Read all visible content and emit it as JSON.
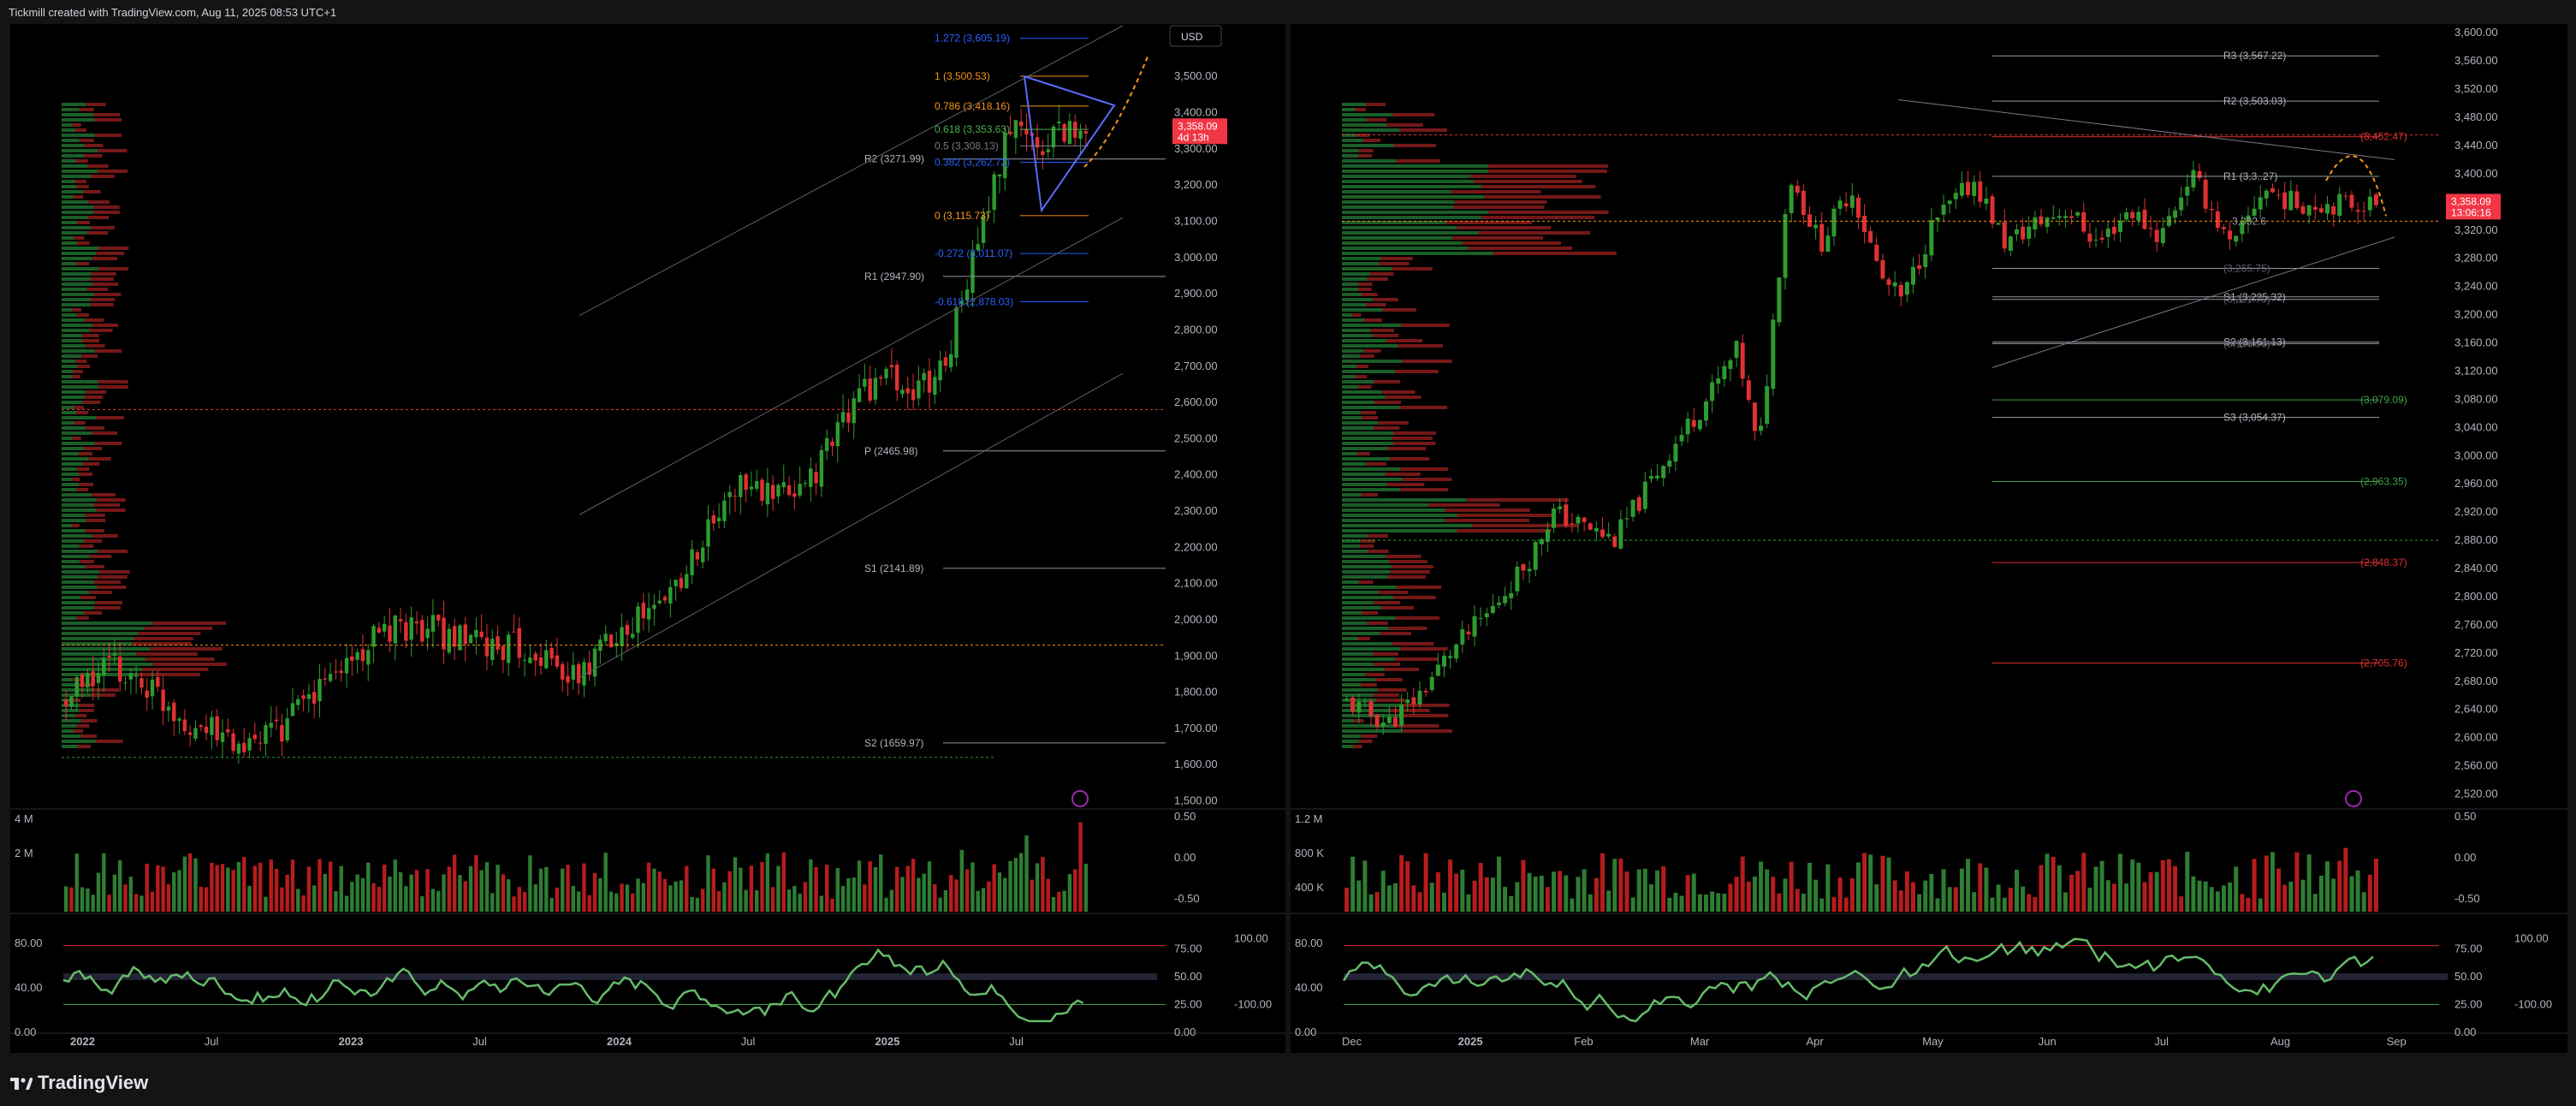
{
  "header": {
    "title": "Tickmill created with TradingView.com, Aug 11, 2025 08:53 UTC+1"
  },
  "footer": {
    "brand": "TradingView"
  },
  "colors": {
    "up": "#26a69a",
    "upGreen": "#2e9b2e",
    "down": "#e03131",
    "bg": "#000000",
    "frame": "#141414",
    "grid": "#1e1e1e",
    "fib_orange": "#f7931a",
    "fib_blue": "#2962ff",
    "pivot": "#d1d4dc",
    "price_tag": "#f23645"
  },
  "chart_data": [
    {
      "type": "candlestick",
      "panel": "left",
      "timeframe": "weekly",
      "currency_button": "USD",
      "y_ticks": [
        "3,600.00",
        "3,500.00",
        "3,400.00",
        "3,300.00",
        "3,200.00",
        "3,100.00",
        "3,000.00",
        "2,900.00",
        "2,800.00",
        "2,700.00",
        "2,600.00",
        "2,500.00",
        "2,400.00",
        "2,300.00",
        "2,200.00",
        "2,100.00",
        "2,000.00",
        "1,900.00",
        "1,800.00",
        "1,700.00",
        "1,600.00",
        "1,500.00"
      ],
      "ylim": [
        1480,
        3640
      ],
      "x_ticks": [
        "2022",
        "Jul",
        "2023",
        "Jul",
        "2024",
        "Jul",
        "2025",
        "Jul"
      ],
      "x_ticks_bold": [
        true,
        false,
        true,
        false,
        true,
        false,
        true,
        false
      ],
      "last_price": "3,358.09",
      "countdown": "4d 13h",
      "pivots": [
        {
          "label": "R2 (3271.99)",
          "value": 3271.99
        },
        {
          "label": "R1 (2947.90)",
          "value": 2947.9
        },
        {
          "label": "P (2465.98)",
          "value": 2465.98
        },
        {
          "label": "S1 (2141.89)",
          "value": 2141.89
        },
        {
          "label": "S2 (1659.97)",
          "value": 1659.97
        }
      ],
      "fib_levels": [
        {
          "label": "1.272 (3,605.19)",
          "value": 3605.19,
          "color": "blue"
        },
        {
          "label": "1 (3,500.53)",
          "value": 3500.53,
          "color": "orange"
        },
        {
          "label": "0.786 (3,418.16)",
          "value": 3418.16,
          "color": "orange"
        },
        {
          "label": "0.618 (3,353.63)",
          "value": 3353.63,
          "color": "green"
        },
        {
          "label": "0.5 (3,308.13)",
          "value": 3308.13,
          "color": "gray"
        },
        {
          "label": "0.382 (3,262.72)",
          "value": 3262.72,
          "color": "blue"
        },
        {
          "label": "0 (3,115.73)",
          "value": 3115.73,
          "color": "orange"
        },
        {
          "label": "-0.272 (3,011.07)",
          "value": 3011.07,
          "color": "blue"
        },
        {
          "label": "-0.618 (2,878.03)",
          "value": 2878.03,
          "color": "blue"
        }
      ],
      "volume_axis": [
        "4 M",
        "2 M"
      ],
      "volume_osc_axis": [
        "0.50",
        "0.00",
        "-0.50"
      ],
      "rsi_axis_left": [
        "80.00",
        "40.00",
        "0.00"
      ],
      "rsi_axis_right": [
        "75.00",
        "50.00",
        "25.00",
        "0.00"
      ],
      "rsi_axis_far": [
        "100.00",
        "-100.00"
      ]
    },
    {
      "type": "candlestick",
      "panel": "right",
      "timeframe": "daily",
      "y_ticks": [
        "3,600.00",
        "3,560.00",
        "3,520.00",
        "3,480.00",
        "3,440.00",
        "3,400.00",
        "3,360.00",
        "3,320.00",
        "3,280.00",
        "3,240.00",
        "3,200.00",
        "3,160.00",
        "3,120.00",
        "3,080.00",
        "3,040.00",
        "3,000.00",
        "2,960.00",
        "2,920.00",
        "2,880.00",
        "2,840.00",
        "2,800.00",
        "2,760.00",
        "2,720.00",
        "2,680.00",
        "2,640.00",
        "2,600.00",
        "2,560.00",
        "2,520.00"
      ],
      "ylim": [
        2500,
        3610
      ],
      "x_ticks": [
        "Dec",
        "2025",
        "Feb",
        "Mar",
        "Apr",
        "May",
        "Jun",
        "Jul",
        "Aug",
        "Sep"
      ],
      "x_ticks_bold": [
        false,
        true,
        false,
        false,
        false,
        false,
        false,
        false,
        false,
        false
      ],
      "last_price": "3,358.09",
      "countdown": "13:06:16",
      "pivots": [
        {
          "label": "R3 (3,567.22)",
          "value": 3567.22
        },
        {
          "label": "R2 (3,503.03)",
          "value": 3503.03
        },
        {
          "label": "R1 (3,3..27)",
          "value": 3396.27
        },
        {
          "label": "(3,265.75)",
          "value": 3265.75
        },
        {
          "label": "S1 (3,225.32)",
          "value": 3225.32
        },
        {
          "label": "(3,221.70)",
          "value": 3221.7
        },
        {
          "label": "S2 (3,161.13)",
          "value": 3161.13
        },
        {
          "label": "(3,158.98)",
          "value": 3158.98
        },
        {
          "label": "S3 (3,054.37)",
          "value": 3054.37
        }
      ],
      "colored_levels": [
        {
          "label": "(3,452.47)",
          "value": 3452.47,
          "color": "red"
        },
        {
          "label": "(3,079.09)",
          "value": 3079.09,
          "color": "green"
        },
        {
          "label": "(2,963.35)",
          "value": 2963.35,
          "color": "green"
        },
        {
          "label": "(2,848.37)",
          "value": 2848.37,
          "color": "red"
        },
        {
          "label": "(2,705.76)",
          "value": 2705.76,
          "color": "red"
        }
      ],
      "poc_label": "3,332.6",
      "volume_axis": [
        "1.2 M",
        "800 K",
        "400 K"
      ],
      "volume_osc_axis": [
        "0.50",
        "0.00",
        "-0.50"
      ],
      "rsi_axis_left": [
        "80.00",
        "40.00",
        "0.00"
      ],
      "rsi_axis_right": [
        "75.00",
        "50.00",
        "25.00",
        "0.00"
      ],
      "rsi_axis_far": [
        "100.00",
        "-100.00"
      ]
    }
  ]
}
